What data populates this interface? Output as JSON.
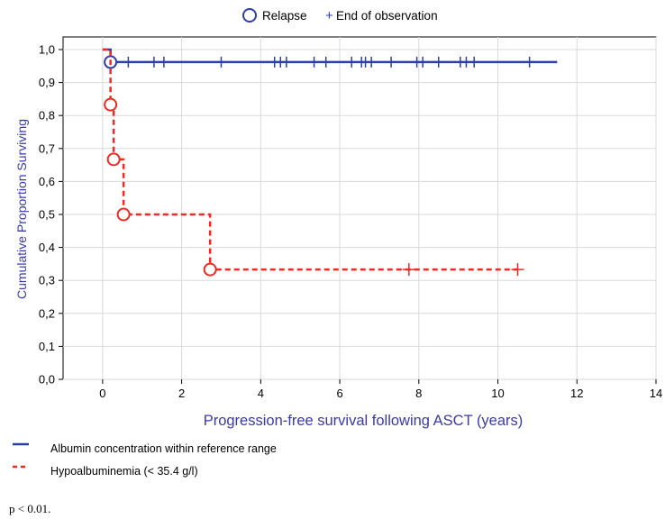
{
  "chart_data": {
    "type": "line",
    "top_legend": {
      "relapse": "Relapse",
      "censor": "End of observation"
    },
    "xlabel": "Progression-free survival following ASCT (years)",
    "ylabel": "Cumulative Proportion Surviving",
    "xlim": [
      -1,
      14
    ],
    "ylim": [
      0,
      1.05
    ],
    "x_ticks": [
      0,
      2,
      4,
      6,
      8,
      10,
      12,
      14
    ],
    "y_ticks": [
      0.0,
      0.1,
      0.2,
      0.3,
      0.4,
      0.5,
      0.6,
      0.7,
      0.8,
      0.9,
      1.0
    ],
    "x_tick_labels": [
      "0",
      "2",
      "4",
      "6",
      "8",
      "10",
      "12",
      "14"
    ],
    "y_tick_labels": [
      "0,0",
      "0,1",
      "0,2",
      "0,3",
      "0,4",
      "0,5",
      "0,6",
      "0,7",
      "0,8",
      "0,9",
      "1,0"
    ],
    "grid": true,
    "series": [
      {
        "name": "Albumin concentration within reference range",
        "color": "#2b3fa7",
        "line_style": "solid",
        "steps": [
          [
            0,
            1.0
          ],
          [
            0.2,
            0.962
          ],
          [
            11.5,
            0.962
          ]
        ],
        "events": [
          [
            0.2,
            0.962
          ]
        ],
        "censored": [
          0.65,
          1.3,
          1.55,
          3.0,
          4.35,
          4.5,
          4.65,
          5.35,
          5.65,
          6.3,
          6.55,
          6.65,
          6.8,
          7.3,
          7.95,
          8.1,
          8.5,
          9.05,
          9.2,
          9.4,
          10.8
        ]
      },
      {
        "name": "Hypoalbuminemia (< 35.4 g/l)",
        "color": "#ee2a24",
        "line_style": "dashed",
        "steps": [
          [
            0,
            1.0
          ],
          [
            0.2,
            0.833
          ],
          [
            0.28,
            0.667
          ],
          [
            0.53,
            0.5
          ],
          [
            2.72,
            0.333
          ],
          [
            10.5,
            0.333
          ]
        ],
        "events": [
          [
            0.2,
            0.833
          ],
          [
            0.28,
            0.667
          ],
          [
            0.53,
            0.5
          ],
          [
            2.72,
            0.333
          ]
        ],
        "censored": [
          7.75,
          10.5
        ]
      }
    ],
    "note": "p < 0.01."
  }
}
